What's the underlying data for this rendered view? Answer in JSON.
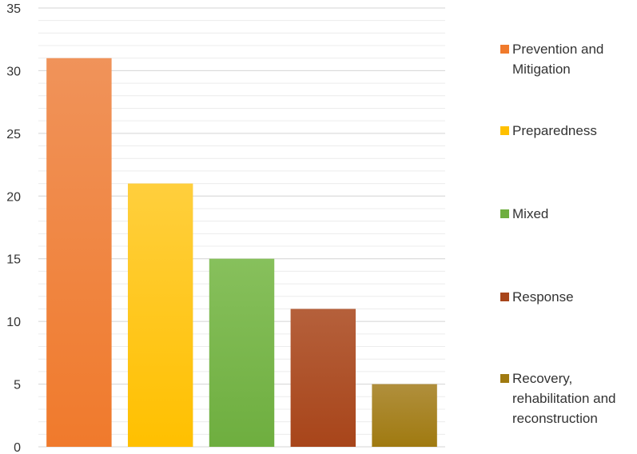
{
  "chart_data": {
    "type": "bar",
    "title": "",
    "xlabel": "",
    "ylabel": "",
    "categories": [
      "Prevention and Mitigation",
      "Preparedness",
      "Mixed",
      "Response",
      "Recovery, rehabilitation and reconstruction"
    ],
    "values": [
      31,
      21,
      15,
      11,
      5
    ],
    "colors": [
      "#F07A2C",
      "#FFC000",
      "#6EAE3F",
      "#A8451A",
      "#A07A10"
    ],
    "color_tops": [
      "#F0935A",
      "#FFCF3D",
      "#87C05C",
      "#B5603B",
      "#B08F3C"
    ],
    "ylim": [
      0,
      35
    ],
    "yticks": [
      "0",
      "5",
      "10",
      "15",
      "20",
      "25",
      "30",
      "35"
    ],
    "minor_gridlines": true,
    "legend": {
      "placement": "right",
      "entries": [
        {
          "lines": [
            "Prevention and",
            "Mitigation"
          ]
        },
        {
          "lines": [
            "Preparedness"
          ]
        },
        {
          "lines": [
            "Mixed"
          ]
        },
        {
          "lines": [
            "Response"
          ]
        },
        {
          "lines": [
            "Recovery,",
            "rehabilitation and",
            "reconstruction"
          ]
        }
      ]
    }
  }
}
